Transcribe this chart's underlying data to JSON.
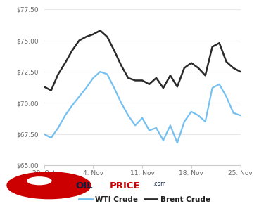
{
  "wti_x": [
    0,
    1,
    2,
    3,
    4,
    5,
    6,
    7,
    8,
    9,
    10,
    11,
    12,
    13,
    14,
    15,
    16,
    17,
    18,
    19,
    20,
    21,
    22,
    23,
    24,
    25,
    26,
    27,
    28
  ],
  "wti_y": [
    67.5,
    67.2,
    68.0,
    69.0,
    69.8,
    70.5,
    71.2,
    72.0,
    72.5,
    72.3,
    71.2,
    70.0,
    69.0,
    68.2,
    68.8,
    67.8,
    68.0,
    67.0,
    68.2,
    66.8,
    68.5,
    69.3,
    69.0,
    68.5,
    71.2,
    71.5,
    70.5,
    69.2,
    69.0
  ],
  "brent_x": [
    0,
    1,
    2,
    3,
    4,
    5,
    6,
    7,
    8,
    9,
    10,
    11,
    12,
    13,
    14,
    15,
    16,
    17,
    18,
    19,
    20,
    21,
    22,
    23,
    24,
    25,
    26,
    27,
    28
  ],
  "brent_y": [
    71.3,
    71.0,
    72.3,
    73.2,
    74.2,
    75.0,
    75.3,
    75.5,
    75.8,
    75.3,
    74.2,
    73.0,
    72.0,
    71.8,
    71.8,
    71.5,
    72.0,
    71.2,
    72.2,
    71.3,
    72.8,
    73.2,
    72.8,
    72.2,
    74.5,
    74.8,
    73.3,
    72.8,
    72.5
  ],
  "wti_color": "#74c0f0",
  "brent_color": "#2a2a2a",
  "ylim": [
    65.0,
    77.5
  ],
  "yticks": [
    65.0,
    67.5,
    70.0,
    72.5,
    75.0,
    77.5
  ],
  "ytick_labels": [
    "$65.00",
    "$67.50",
    "$70.00",
    "$72.50",
    "$75.00",
    "$77.50"
  ],
  "xtick_positions": [
    0,
    7,
    14,
    21,
    28
  ],
  "xtick_labels": [
    "28. Oct",
    "4. Nov",
    "11. Nov",
    "18. Nov",
    "25. Nov"
  ],
  "background_color": "#ffffff",
  "grid_color": "#e8e8e8",
  "wti_label": "WTI Crude",
  "brent_label": "Brent Crude"
}
